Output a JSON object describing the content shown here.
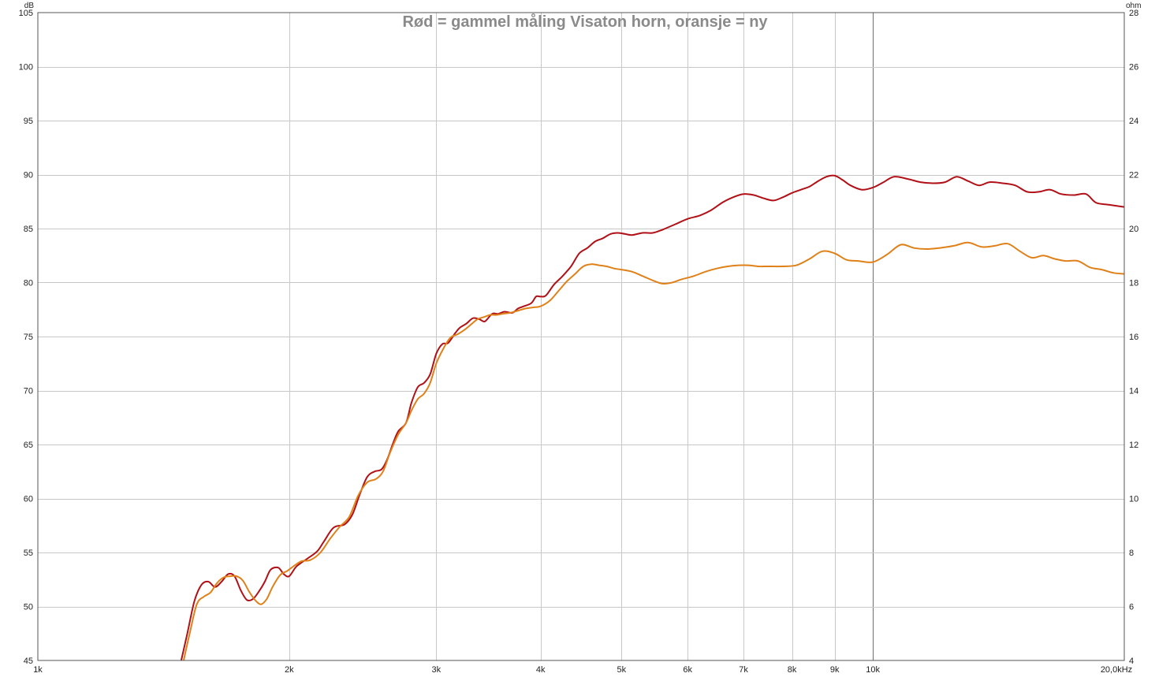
{
  "chart_data": {
    "type": "line",
    "title": "Rød = gammel måling Visaton horn, oransje = ny",
    "x_scale": "log",
    "xlim": [
      1000,
      20000
    ],
    "x_ticks": [
      {
        "value": 1000,
        "label": "1k"
      },
      {
        "value": 2000,
        "label": "2k"
      },
      {
        "value": 3000,
        "label": "3k"
      },
      {
        "value": 4000,
        "label": "4k"
      },
      {
        "value": 5000,
        "label": "5k"
      },
      {
        "value": 6000,
        "label": "6k"
      },
      {
        "value": 7000,
        "label": "7k"
      },
      {
        "value": 8000,
        "label": "8k"
      },
      {
        "value": 9000,
        "label": "9k"
      },
      {
        "value": 10000,
        "label": "10k"
      },
      {
        "value": 20000,
        "label": "20,0kHz"
      }
    ],
    "y_left": {
      "unit": "dB",
      "ylim": [
        45,
        105
      ],
      "ticks": [
        45,
        50,
        55,
        60,
        65,
        70,
        75,
        80,
        85,
        90,
        95,
        100,
        105
      ]
    },
    "y_right": {
      "unit": "ohm",
      "ylim": [
        4,
        28
      ],
      "ticks": [
        4,
        6,
        8,
        10,
        12,
        14,
        16,
        18,
        20,
        22,
        24,
        26,
        28
      ]
    },
    "grid": true,
    "legend": "none",
    "series": [
      {
        "color": "#b01016",
        "points": [
          [
            1485,
            45
          ],
          [
            1510,
            47.5
          ],
          [
            1540,
            50.5
          ],
          [
            1570,
            52
          ],
          [
            1600,
            52.3
          ],
          [
            1630,
            51.8
          ],
          [
            1660,
            52.3
          ],
          [
            1690,
            53
          ],
          [
            1720,
            52.8
          ],
          [
            1750,
            51.5
          ],
          [
            1780,
            50.6
          ],
          [
            1810,
            50.7
          ],
          [
            1840,
            51.4
          ],
          [
            1870,
            52.3
          ],
          [
            1900,
            53.4
          ],
          [
            1940,
            53.6
          ],
          [
            1970,
            53
          ],
          [
            2000,
            52.8
          ],
          [
            2040,
            53.7
          ],
          [
            2100,
            54.4
          ],
          [
            2160,
            55.1
          ],
          [
            2200,
            56
          ],
          [
            2260,
            57.3
          ],
          [
            2330,
            57.6
          ],
          [
            2380,
            58.5
          ],
          [
            2430,
            60.4
          ],
          [
            2480,
            62
          ],
          [
            2530,
            62.5
          ],
          [
            2580,
            62.7
          ],
          [
            2620,
            63.6
          ],
          [
            2660,
            65
          ],
          [
            2700,
            66.2
          ],
          [
            2760,
            67
          ],
          [
            2800,
            68.8
          ],
          [
            2850,
            70.3
          ],
          [
            2900,
            70.7
          ],
          [
            2950,
            71.5
          ],
          [
            3000,
            73.4
          ],
          [
            3050,
            74.3
          ],
          [
            3100,
            74.4
          ],
          [
            3160,
            75.3
          ],
          [
            3200,
            75.8
          ],
          [
            3260,
            76.2
          ],
          [
            3320,
            76.7
          ],
          [
            3380,
            76.6
          ],
          [
            3430,
            76.4
          ],
          [
            3500,
            77.1
          ],
          [
            3560,
            77.1
          ],
          [
            3620,
            77.3
          ],
          [
            3700,
            77.2
          ],
          [
            3760,
            77.6
          ],
          [
            3820,
            77.8
          ],
          [
            3900,
            78.1
          ],
          [
            3950,
            78.7
          ],
          [
            4000,
            78.7
          ],
          [
            4060,
            78.8
          ],
          [
            4150,
            79.8
          ],
          [
            4250,
            80.6
          ],
          [
            4350,
            81.5
          ],
          [
            4450,
            82.7
          ],
          [
            4550,
            83.2
          ],
          [
            4650,
            83.8
          ],
          [
            4750,
            84.1
          ],
          [
            4850,
            84.5
          ],
          [
            4950,
            84.6
          ],
          [
            5050,
            84.5
          ],
          [
            5150,
            84.4
          ],
          [
            5300,
            84.6
          ],
          [
            5450,
            84.6
          ],
          [
            5600,
            84.9
          ],
          [
            5800,
            85.4
          ],
          [
            6000,
            85.9
          ],
          [
            6200,
            86.2
          ],
          [
            6400,
            86.7
          ],
          [
            6600,
            87.4
          ],
          [
            6800,
            87.9
          ],
          [
            7000,
            88.2
          ],
          [
            7200,
            88.1
          ],
          [
            7400,
            87.8
          ],
          [
            7600,
            87.6
          ],
          [
            7800,
            87.9
          ],
          [
            8000,
            88.3
          ],
          [
            8200,
            88.6
          ],
          [
            8400,
            88.9
          ],
          [
            8600,
            89.4
          ],
          [
            8800,
            89.8
          ],
          [
            9000,
            89.9
          ],
          [
            9200,
            89.5
          ],
          [
            9400,
            89.0
          ],
          [
            9700,
            88.6
          ],
          [
            10000,
            88.8
          ],
          [
            10300,
            89.3
          ],
          [
            10600,
            89.8
          ],
          [
            11000,
            89.6
          ],
          [
            11400,
            89.3
          ],
          [
            11800,
            89.2
          ],
          [
            12200,
            89.3
          ],
          [
            12600,
            89.8
          ],
          [
            13000,
            89.4
          ],
          [
            13400,
            89.0
          ],
          [
            13800,
            89.3
          ],
          [
            14300,
            89.2
          ],
          [
            14800,
            89.0
          ],
          [
            15300,
            88.4
          ],
          [
            15800,
            88.4
          ],
          [
            16300,
            88.6
          ],
          [
            16800,
            88.2
          ],
          [
            17400,
            88.1
          ],
          [
            18000,
            88.2
          ],
          [
            18500,
            87.4
          ],
          [
            19200,
            87.2
          ],
          [
            20000,
            87.0
          ]
        ]
      },
      {
        "color": "#e08018",
        "points": [
          [
            1495,
            45
          ],
          [
            1520,
            47.5
          ],
          [
            1550,
            50.2
          ],
          [
            1580,
            50.9
          ],
          [
            1610,
            51.3
          ],
          [
            1640,
            52.2
          ],
          [
            1670,
            52.7
          ],
          [
            1700,
            52.8
          ],
          [
            1730,
            52.8
          ],
          [
            1760,
            52.4
          ],
          [
            1790,
            51.4
          ],
          [
            1820,
            50.6
          ],
          [
            1850,
            50.2
          ],
          [
            1880,
            50.7
          ],
          [
            1910,
            51.8
          ],
          [
            1950,
            52.9
          ],
          [
            1990,
            53.3
          ],
          [
            2030,
            53.8
          ],
          [
            2070,
            54.2
          ],
          [
            2120,
            54.3
          ],
          [
            2180,
            55.0
          ],
          [
            2240,
            56.3
          ],
          [
            2300,
            57.4
          ],
          [
            2360,
            58.3
          ],
          [
            2420,
            60.3
          ],
          [
            2480,
            61.5
          ],
          [
            2540,
            61.8
          ],
          [
            2590,
            62.5
          ],
          [
            2640,
            64.2
          ],
          [
            2700,
            65.9
          ],
          [
            2760,
            67.0
          ],
          [
            2800,
            68.1
          ],
          [
            2850,
            69.2
          ],
          [
            2900,
            69.7
          ],
          [
            2950,
            70.7
          ],
          [
            3000,
            72.5
          ],
          [
            3060,
            73.9
          ],
          [
            3120,
            74.9
          ],
          [
            3180,
            75.2
          ],
          [
            3240,
            75.6
          ],
          [
            3300,
            76.1
          ],
          [
            3360,
            76.6
          ],
          [
            3420,
            76.8
          ],
          [
            3480,
            77.0
          ],
          [
            3540,
            77.0
          ],
          [
            3600,
            77.1
          ],
          [
            3680,
            77.2
          ],
          [
            3760,
            77.4
          ],
          [
            3840,
            77.6
          ],
          [
            3920,
            77.7
          ],
          [
            4000,
            77.8
          ],
          [
            4100,
            78.3
          ],
          [
            4200,
            79.2
          ],
          [
            4300,
            80.1
          ],
          [
            4400,
            80.8
          ],
          [
            4500,
            81.5
          ],
          [
            4600,
            81.7
          ],
          [
            4700,
            81.6
          ],
          [
            4800,
            81.5
          ],
          [
            4900,
            81.3
          ],
          [
            5000,
            81.2
          ],
          [
            5150,
            81.0
          ],
          [
            5300,
            80.6
          ],
          [
            5450,
            80.2
          ],
          [
            5600,
            79.9
          ],
          [
            5750,
            80.0
          ],
          [
            5900,
            80.3
          ],
          [
            6100,
            80.6
          ],
          [
            6300,
            81.0
          ],
          [
            6500,
            81.3
          ],
          [
            6700,
            81.5
          ],
          [
            6900,
            81.6
          ],
          [
            7100,
            81.6
          ],
          [
            7300,
            81.5
          ],
          [
            7500,
            81.5
          ],
          [
            7800,
            81.5
          ],
          [
            8100,
            81.6
          ],
          [
            8400,
            82.2
          ],
          [
            8700,
            82.9
          ],
          [
            9000,
            82.7
          ],
          [
            9300,
            82.1
          ],
          [
            9600,
            82.0
          ],
          [
            10000,
            81.9
          ],
          [
            10400,
            82.6
          ],
          [
            10800,
            83.5
          ],
          [
            11200,
            83.2
          ],
          [
            11600,
            83.1
          ],
          [
            12000,
            83.2
          ],
          [
            12500,
            83.4
          ],
          [
            13000,
            83.7
          ],
          [
            13500,
            83.3
          ],
          [
            14000,
            83.4
          ],
          [
            14500,
            83.6
          ],
          [
            15000,
            82.9
          ],
          [
            15500,
            82.3
          ],
          [
            16000,
            82.5
          ],
          [
            16500,
            82.2
          ],
          [
            17000,
            82.0
          ],
          [
            17600,
            82.0
          ],
          [
            18200,
            81.4
          ],
          [
            18800,
            81.2
          ],
          [
            19400,
            80.9
          ],
          [
            20000,
            80.8
          ]
        ]
      }
    ]
  }
}
